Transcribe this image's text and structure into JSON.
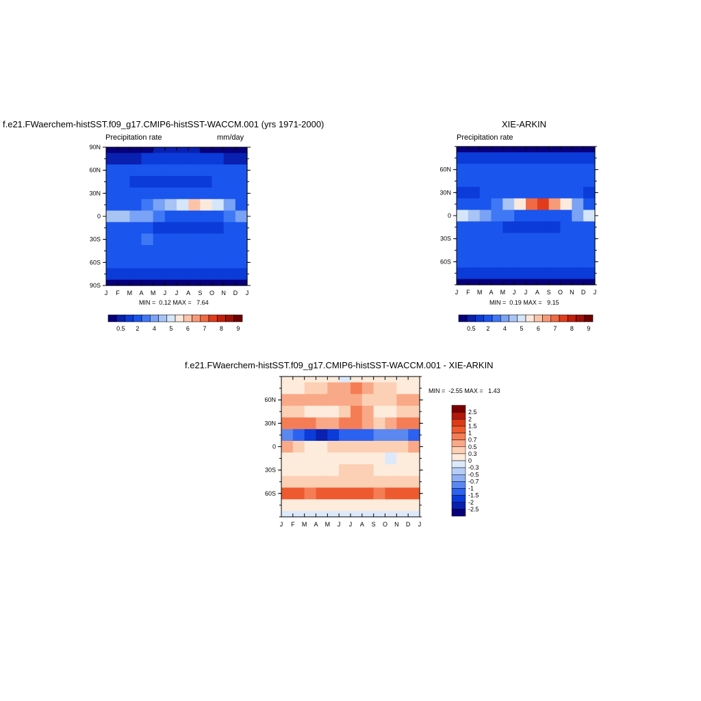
{
  "colors": {
    "precip_palette": [
      "#08007a",
      "#0a20b0",
      "#0b3bd8",
      "#1a55ee",
      "#3f78f5",
      "#7aa2f5",
      "#a8c4f5",
      "#d6e6fa",
      "#fbe9dc",
      "#fbc4a9",
      "#f79a78",
      "#f06a45",
      "#e23b1c",
      "#c11e0c",
      "#9e1006",
      "#6e0000"
    ],
    "diff_palette": [
      "#08007a",
      "#0a20b0",
      "#0b3bd8",
      "#2c62f0",
      "#5b88f0",
      "#8fb0f2",
      "#b7cdf5",
      "#dde9fb",
      "#fdebdc",
      "#fcd0b4",
      "#f9a987",
      "#f57d55",
      "#ee5a2f",
      "#dc3a18",
      "#b3180a",
      "#7a0000"
    ]
  },
  "chart_data": [
    {
      "type": "heatmap",
      "title": "f.e21.FWaerchem-histSST.f09_g17.CMIP6-histSST-WACCM.001 (yrs 1971-2000)",
      "left_label": "Precipitation rate",
      "right_label": "mm/day",
      "x_ticks": [
        "J",
        "F",
        "M",
        "A",
        "M",
        "J",
        "J",
        "A",
        "S",
        "O",
        "N",
        "D",
        "J"
      ],
      "y_ticks": [
        "90N",
        "60N",
        "30N",
        "0",
        "30S",
        "60S",
        "90S"
      ],
      "stats": {
        "min_label": "MIN =",
        "min": "0.12",
        "max_label": "MAX =",
        "max": "7.64"
      },
      "colorbar_labels": [
        "0.5",
        "2",
        "4",
        "5",
        "6",
        "7",
        "8",
        "9"
      ],
      "lat_rows": [
        "90N",
        "75N",
        "60N",
        "45N",
        "30N",
        "15N",
        "0",
        "15S",
        "30S",
        "45S",
        "60S",
        "75S",
        "90S"
      ],
      "z": [
        [
          0.3,
          0.3,
          0.3,
          0.4,
          0.5,
          0.5,
          0.5,
          0.5,
          0.4,
          0.4,
          0.3,
          0.3
        ],
        [
          0.5,
          0.5,
          0.5,
          1.0,
          1.0,
          1.0,
          1.0,
          1.0,
          1.0,
          1.0,
          0.5,
          0.5
        ],
        [
          2.0,
          2.0,
          2.0,
          2.0,
          2.0,
          2.0,
          2.0,
          2.0,
          2.0,
          2.0,
          2.0,
          2.0
        ],
        [
          2.0,
          2.0,
          1.0,
          1.0,
          1.0,
          1.0,
          1.0,
          1.0,
          1.0,
          2.0,
          2.0,
          2.0
        ],
        [
          2.0,
          2.0,
          2.0,
          2.0,
          2.0,
          2.0,
          2.0,
          2.0,
          2.0,
          2.0,
          2.0,
          2.0
        ],
        [
          2.0,
          2.0,
          2.0,
          3.0,
          4.0,
          5.0,
          6.0,
          7.5,
          7.0,
          6.5,
          4.0,
          2.0
        ],
        [
          5.0,
          5.0,
          4.5,
          4.0,
          3.0,
          2.0,
          2.0,
          2.0,
          2.0,
          2.0,
          3.0,
          4.5
        ],
        [
          2.0,
          2.0,
          2.0,
          2.0,
          1.0,
          1.0,
          1.0,
          1.0,
          1.0,
          1.0,
          2.0,
          2.0
        ],
        [
          2.0,
          2.0,
          2.0,
          3.0,
          2.0,
          2.0,
          2.0,
          2.0,
          2.0,
          2.0,
          2.0,
          2.0
        ],
        [
          2.0,
          2.0,
          2.0,
          2.0,
          2.0,
          2.0,
          2.0,
          2.0,
          2.0,
          2.0,
          2.0,
          2.0
        ],
        [
          2.0,
          2.0,
          2.0,
          2.0,
          2.0,
          2.0,
          2.0,
          2.0,
          2.0,
          2.0,
          2.0,
          2.0
        ],
        [
          1.0,
          1.0,
          1.0,
          1.0,
          1.0,
          1.0,
          1.0,
          1.0,
          1.0,
          1.0,
          1.0,
          1.0
        ],
        [
          0.3,
          0.3,
          0.3,
          0.3,
          0.3,
          0.3,
          0.3,
          0.3,
          0.3,
          0.3,
          0.3,
          0.3
        ]
      ]
    },
    {
      "type": "heatmap",
      "title": "XIE-ARKIN",
      "left_label": "Precipitation rate",
      "right_label": "",
      "x_ticks": [
        "J",
        "F",
        "M",
        "A",
        "M",
        "J",
        "J",
        "A",
        "S",
        "O",
        "N",
        "D",
        "J"
      ],
      "y_ticks": [
        "60N",
        "30N",
        "0",
        "30S",
        "60S"
      ],
      "stats": {
        "min_label": "MIN =",
        "min": "0.19",
        "max_label": "MAX =",
        "max": "9.15"
      },
      "colorbar_labels": [
        "0.5",
        "2",
        "4",
        "5",
        "6",
        "7",
        "8",
        "9"
      ],
      "lat_rows": [
        "90N",
        "75N",
        "60N",
        "45N",
        "30N",
        "15N",
        "0",
        "15S",
        "30S",
        "45S",
        "60S",
        "75S",
        "90S"
      ],
      "z": [
        [
          0.3,
          0.3,
          0.3,
          0.3,
          0.3,
          0.3,
          0.3,
          0.3,
          0.3,
          0.3,
          0.3,
          0.3
        ],
        [
          1.0,
          1.0,
          1.0,
          1.0,
          1.0,
          1.0,
          1.0,
          1.0,
          1.0,
          1.0,
          1.0,
          1.0
        ],
        [
          2.0,
          2.0,
          2.0,
          2.0,
          2.0,
          2.0,
          2.0,
          2.0,
          2.0,
          2.0,
          2.0,
          2.0
        ],
        [
          2.0,
          2.0,
          2.0,
          2.0,
          2.0,
          2.0,
          2.0,
          2.0,
          2.0,
          2.0,
          2.0,
          2.0
        ],
        [
          1.0,
          1.0,
          2.0,
          2.0,
          2.0,
          2.0,
          2.0,
          2.0,
          2.0,
          2.0,
          2.0,
          1.0
        ],
        [
          2.0,
          2.0,
          2.0,
          3.0,
          5.0,
          7.0,
          8.5,
          9.0,
          8.0,
          7.0,
          4.0,
          2.0
        ],
        [
          6.0,
          5.0,
          4.0,
          3.5,
          3.0,
          2.5,
          2.0,
          2.0,
          2.0,
          2.5,
          4.0,
          6.0
        ],
        [
          2.0,
          2.0,
          2.0,
          2.0,
          1.0,
          1.0,
          1.0,
          1.0,
          1.0,
          2.0,
          2.0,
          2.0
        ],
        [
          2.0,
          2.0,
          2.0,
          2.0,
          2.0,
          2.0,
          2.0,
          2.0,
          2.0,
          2.0,
          2.0,
          2.0
        ],
        [
          2.0,
          2.0,
          2.0,
          2.0,
          2.0,
          2.0,
          2.0,
          2.0,
          2.0,
          2.0,
          2.0,
          2.0
        ],
        [
          2.0,
          2.0,
          2.0,
          2.0,
          2.0,
          2.0,
          2.0,
          2.0,
          2.0,
          2.0,
          2.0,
          2.0
        ],
        [
          1.0,
          1.0,
          1.0,
          1.0,
          1.0,
          1.0,
          1.0,
          1.0,
          1.0,
          1.0,
          1.0,
          1.0
        ],
        [
          0.3,
          0.3,
          0.3,
          0.3,
          0.3,
          0.3,
          0.3,
          0.3,
          0.3,
          0.3,
          0.3,
          0.3
        ]
      ]
    },
    {
      "type": "heatmap",
      "title": "f.e21.FWaerchem-histSST.f09_g17.CMIP6-histSST-WACCM.001 - XIE-ARKIN",
      "x_ticks": [
        "J",
        "F",
        "M",
        "A",
        "M",
        "J",
        "J",
        "A",
        "S",
        "O",
        "N",
        "D",
        "J"
      ],
      "y_ticks": [
        "60N",
        "30N",
        "0",
        "30S",
        "60S"
      ],
      "stats": {
        "min_label": "MIN =",
        "min": "-2.55",
        "max_label": "MAX =",
        "max": "1.43"
      },
      "colorbar_labels": [
        "2.5",
        "2",
        "1.5",
        "1",
        "0.7",
        "0.5",
        "0.3",
        "0",
        "-0.3",
        "-0.5",
        "-0.7",
        "-1",
        "-1.5",
        "-2",
        "-2.5"
      ],
      "lat_rows": [
        "90N",
        "75N",
        "60N",
        "45N",
        "30N",
        "15N",
        "0",
        "15S",
        "30S",
        "45S",
        "60S",
        "75S",
        "90S"
      ],
      "z": [
        [
          0.1,
          0.1,
          0.2,
          0.1,
          0.0,
          -0.2,
          0.0,
          0.1,
          0.1,
          0.1,
          0.1,
          0.1
        ],
        [
          0.2,
          0.2,
          0.3,
          0.3,
          0.5,
          0.6,
          0.7,
          0.6,
          0.4,
          0.3,
          0.2,
          0.2
        ],
        [
          0.5,
          0.5,
          0.6,
          0.5,
          0.6,
          0.5,
          0.5,
          0.4,
          0.4,
          0.4,
          0.5,
          0.5
        ],
        [
          0.3,
          0.3,
          0.2,
          0.1,
          0.1,
          0.3,
          0.8,
          0.6,
          0.2,
          0.2,
          0.3,
          0.3
        ],
        [
          0.8,
          0.8,
          0.7,
          0.5,
          0.6,
          0.8,
          0.9,
          0.6,
          0.4,
          0.5,
          0.8,
          0.8
        ],
        [
          -1.0,
          -1.5,
          -2.0,
          -2.5,
          -2.0,
          -1.5,
          -1.5,
          -1.5,
          -1.0,
          -0.8,
          -1.0,
          -1.5
        ],
        [
          0.5,
          0.3,
          0.2,
          0.2,
          0.3,
          0.3,
          0.3,
          0.3,
          0.3,
          0.3,
          0.3,
          0.5
        ],
        [
          0.2,
          0.2,
          0.1,
          0.0,
          0.0,
          0.1,
          0.1,
          0.1,
          0.0,
          -0.2,
          0.0,
          0.2
        ],
        [
          0.2,
          0.2,
          0.2,
          0.2,
          0.2,
          0.3,
          0.3,
          0.3,
          0.2,
          0.2,
          0.2,
          0.2
        ],
        [
          0.3,
          0.3,
          0.3,
          0.3,
          0.3,
          0.3,
          0.3,
          0.3,
          0.3,
          0.3,
          0.3,
          0.3
        ],
        [
          1.0,
          1.0,
          0.9,
          1.1,
          1.2,
          1.4,
          1.3,
          1.0,
          0.9,
          1.0,
          1.1,
          1.0
        ],
        [
          0.1,
          0.1,
          0.2,
          0.2,
          0.2,
          0.2,
          0.2,
          0.2,
          0.1,
          0.1,
          0.1,
          0.1
        ],
        [
          -0.2,
          -0.2,
          -0.3,
          -0.3,
          -0.3,
          -0.3,
          -0.3,
          -0.3,
          -0.3,
          -0.3,
          -0.2,
          -0.2
        ]
      ]
    }
  ]
}
